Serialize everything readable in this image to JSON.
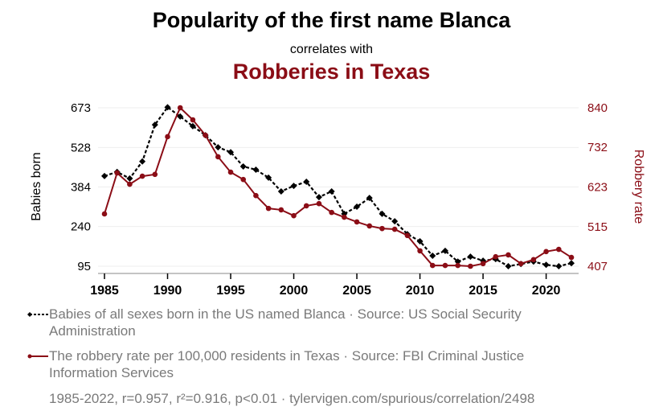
{
  "header": {
    "title": "Popularity of the first name Blanca",
    "subtitle": "correlates with",
    "title2": "Robberies in Texas"
  },
  "legend": {
    "series1": "Babies of all sexes born in the US named Blanca · Source: US Social Security Administration",
    "series2": "The robbery rate per 100,000 residents in Texas · Source: FBI Criminal Justice Information Services"
  },
  "footer": "1985-2022, r=0.957, r²=0.916, p<0.01 · tylervigen.com/spurious/correlation/2498",
  "colors": {
    "series1": "#000000",
    "series2": "#8b0d16",
    "grid": "#eeeeee",
    "axis": "#888888",
    "legend_text": "#7a7a7a"
  },
  "chart_data": {
    "type": "line",
    "title": "Popularity of the first name Blanca correlates with Robberies in Texas",
    "xlabel": "",
    "ylabel": "Babies born",
    "y2label": "Robbery rate",
    "x": [
      1985,
      1986,
      1987,
      1988,
      1989,
      1990,
      1991,
      1992,
      1993,
      1994,
      1995,
      1996,
      1997,
      1998,
      1999,
      2000,
      2001,
      2002,
      2003,
      2004,
      2005,
      2006,
      2007,
      2008,
      2009,
      2010,
      2011,
      2012,
      2013,
      2014,
      2015,
      2016,
      2017,
      2018,
      2019,
      2020,
      2021,
      2022
    ],
    "xticks": [
      1985,
      1990,
      1995,
      2000,
      2005,
      2010,
      2015,
      2020
    ],
    "yticks": [
      95,
      240,
      384,
      528,
      673
    ],
    "y2ticks": [
      407,
      515,
      623,
      732,
      840
    ],
    "ylim": [
      95,
      673
    ],
    "y2lim": [
      407,
      840
    ],
    "grid": true,
    "legend_position": "bottom",
    "series": [
      {
        "name": "Babies of all sexes born in the US named Blanca",
        "axis": "left",
        "style": "dashed, diamond markers",
        "color": "#000000",
        "values": [
          424,
          439,
          415,
          477,
          611,
          675,
          641,
          606,
          573,
          529,
          511,
          459,
          447,
          418,
          368,
          388,
          403,
          347,
          368,
          286,
          312,
          344,
          286,
          259,
          212,
          186,
          133,
          151,
          112,
          130,
          115,
          121,
          95,
          103,
          112,
          100,
          95,
          106
        ]
      },
      {
        "name": "The robbery rate per 100,000 residents in Texas",
        "axis": "right",
        "style": "solid, circle markers",
        "color": "#8b0d16",
        "values": [
          550,
          662,
          631,
          653,
          658,
          761,
          840,
          807,
          765,
          706,
          664,
          644,
          600,
          565,
          561,
          545,
          572,
          578,
          554,
          541,
          528,
          517,
          510,
          508,
          491,
          449,
          409,
          409,
          409,
          407,
          414,
          433,
          438,
          414,
          425,
          447,
          453,
          431
        ]
      }
    ],
    "stats": {
      "years": "1985-2022",
      "r": 0.957,
      "r2": 0.916,
      "p": "<0.01"
    }
  }
}
